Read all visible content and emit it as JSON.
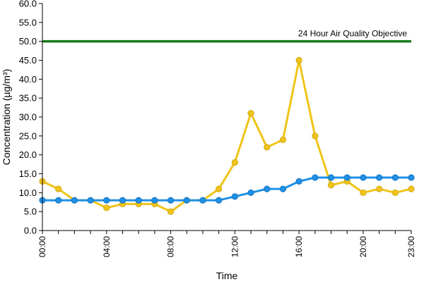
{
  "chart_data": {
    "type": "line",
    "xlabel": "Time",
    "ylabel": "Concentration (µg/m³)",
    "ylim": [
      0,
      60
    ],
    "yticks": [
      0,
      5,
      10,
      15,
      20,
      25,
      30,
      35,
      40,
      45,
      50,
      55,
      60
    ],
    "x": [
      "00:00",
      "01:00",
      "02:00",
      "03:00",
      "04:00",
      "05:00",
      "06:00",
      "07:00",
      "08:00",
      "09:00",
      "10:00",
      "11:00",
      "12:00",
      "13:00",
      "14:00",
      "15:00",
      "16:00",
      "17:00",
      "18:00",
      "19:00",
      "20:00",
      "21:00",
      "22:00",
      "23:00"
    ],
    "xtick_labels": [
      "00:00",
      "04:00",
      "08:00",
      "12:00",
      "16:00",
      "20:00",
      "23:00"
    ],
    "grid": false,
    "series": [
      {
        "color": "#f0c419",
        "values": [
          13,
          11,
          8,
          8,
          6,
          7,
          7,
          7,
          5,
          8,
          8,
          11,
          18,
          31,
          22,
          24,
          45,
          25,
          12,
          13,
          10,
          11,
          10,
          11
        ]
      },
      {
        "color": "#1e90e6",
        "values": [
          8,
          8,
          8,
          8,
          8,
          8,
          8,
          8,
          8,
          8,
          8,
          8,
          9,
          10,
          11,
          11,
          13,
          14,
          14,
          14,
          14,
          14,
          14,
          14
        ]
      }
    ],
    "reference_line": {
      "value": 50,
      "label": "24 Hour Air Quality Objective",
      "color": "#1a7a1a"
    }
  }
}
